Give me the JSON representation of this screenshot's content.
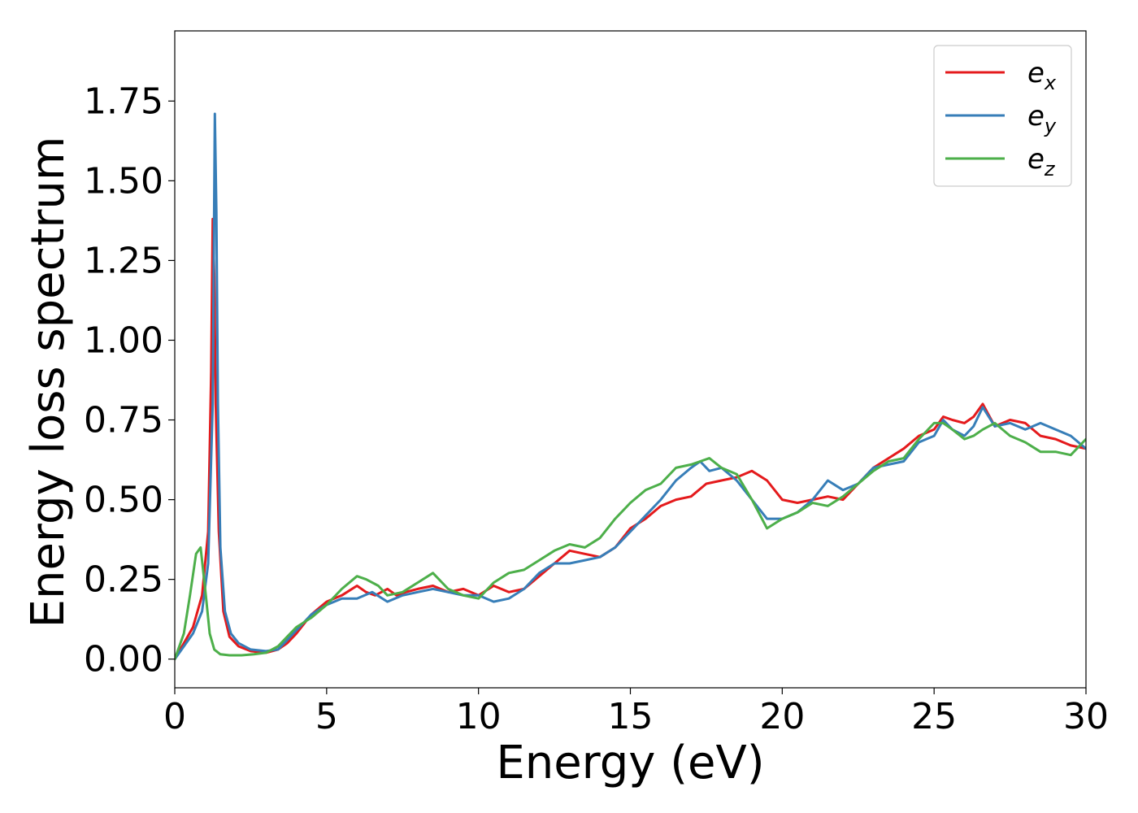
{
  "chart_data": {
    "type": "line",
    "title": "",
    "xlabel": "Energy (eV)",
    "ylabel": "Energy loss spectrum",
    "xlim": [
      0,
      30
    ],
    "ylim": [
      -0.09,
      1.97
    ],
    "xticks": [
      0,
      5,
      10,
      15,
      20,
      25,
      30
    ],
    "yticks": [
      0.0,
      0.25,
      0.5,
      0.75,
      1.0,
      1.25,
      1.5,
      1.75
    ],
    "ytick_labels": [
      "0.00",
      "0.25",
      "0.50",
      "0.75",
      "1.00",
      "1.25",
      "1.50",
      "1.75"
    ],
    "grid": false,
    "legend": {
      "placement": "top-right"
    },
    "series": [
      {
        "name": "e",
        "subscript": "x",
        "color": "#e41a1c",
        "x": [
          0,
          0.3,
          0.6,
          0.9,
          1.1,
          1.2,
          1.25,
          1.3,
          1.35,
          1.45,
          1.6,
          1.8,
          2.1,
          2.5,
          3.0,
          3.4,
          3.7,
          4.0,
          4.5,
          5.0,
          5.5,
          6.0,
          6.3,
          6.6,
          7.0,
          7.3,
          7.6,
          8.0,
          8.5,
          9.0,
          9.5,
          10.0,
          10.5,
          11.0,
          11.5,
          12.0,
          12.5,
          13.0,
          13.5,
          14.0,
          14.5,
          15.0,
          15.5,
          16.0,
          16.5,
          17.0,
          17.5,
          18.0,
          18.5,
          19.0,
          19.5,
          20.0,
          20.5,
          21.0,
          21.5,
          22.0,
          22.5,
          23.0,
          23.5,
          24.0,
          24.5,
          25.0,
          25.3,
          25.6,
          26.0,
          26.3,
          26.6,
          27.0,
          27.5,
          28.0,
          28.5,
          29.0,
          29.5,
          30.0
        ],
        "y": [
          0,
          0.05,
          0.1,
          0.2,
          0.4,
          0.9,
          1.38,
          1.2,
          0.8,
          0.4,
          0.15,
          0.07,
          0.04,
          0.025,
          0.02,
          0.03,
          0.05,
          0.08,
          0.14,
          0.18,
          0.2,
          0.23,
          0.21,
          0.2,
          0.22,
          0.2,
          0.21,
          0.22,
          0.23,
          0.21,
          0.22,
          0.2,
          0.23,
          0.21,
          0.22,
          0.26,
          0.3,
          0.34,
          0.33,
          0.32,
          0.35,
          0.41,
          0.44,
          0.48,
          0.5,
          0.51,
          0.55,
          0.56,
          0.57,
          0.59,
          0.56,
          0.5,
          0.49,
          0.5,
          0.51,
          0.5,
          0.55,
          0.6,
          0.63,
          0.66,
          0.7,
          0.72,
          0.76,
          0.75,
          0.74,
          0.76,
          0.8,
          0.73,
          0.75,
          0.74,
          0.7,
          0.69,
          0.67,
          0.66
        ]
      },
      {
        "name": "e",
        "subscript": "y",
        "color": "#377eb8",
        "x": [
          0,
          0.3,
          0.6,
          0.9,
          1.1,
          1.25,
          1.32,
          1.37,
          1.42,
          1.5,
          1.65,
          1.85,
          2.1,
          2.5,
          3.0,
          3.4,
          3.7,
          4.0,
          4.5,
          5.0,
          5.5,
          6.0,
          6.5,
          7.0,
          7.5,
          8.0,
          8.5,
          9.0,
          9.5,
          10.0,
          10.5,
          11.0,
          11.5,
          12.0,
          12.5,
          13.0,
          13.5,
          14.0,
          14.5,
          15.0,
          15.5,
          16.0,
          16.5,
          17.0,
          17.3,
          17.6,
          18.0,
          18.5,
          19.0,
          19.5,
          20.0,
          20.5,
          21.0,
          21.5,
          22.0,
          22.5,
          23.0,
          23.5,
          24.0,
          24.5,
          25.0,
          25.3,
          25.6,
          26.0,
          26.3,
          26.6,
          27.0,
          27.5,
          28.0,
          28.5,
          29.0,
          29.5,
          30.0
        ],
        "y": [
          0,
          0.04,
          0.08,
          0.15,
          0.3,
          0.8,
          1.71,
          1.4,
          0.8,
          0.35,
          0.15,
          0.08,
          0.05,
          0.03,
          0.025,
          0.03,
          0.06,
          0.09,
          0.14,
          0.17,
          0.19,
          0.19,
          0.21,
          0.18,
          0.2,
          0.21,
          0.22,
          0.21,
          0.2,
          0.2,
          0.18,
          0.19,
          0.22,
          0.27,
          0.3,
          0.3,
          0.31,
          0.32,
          0.35,
          0.4,
          0.45,
          0.5,
          0.56,
          0.6,
          0.62,
          0.59,
          0.6,
          0.56,
          0.5,
          0.44,
          0.44,
          0.46,
          0.5,
          0.56,
          0.53,
          0.55,
          0.6,
          0.61,
          0.62,
          0.68,
          0.7,
          0.75,
          0.72,
          0.7,
          0.73,
          0.79,
          0.73,
          0.74,
          0.72,
          0.74,
          0.72,
          0.7,
          0.66
        ]
      },
      {
        "name": "e",
        "subscript": "z",
        "color": "#4daf4a",
        "x": [
          0,
          0.3,
          0.5,
          0.7,
          0.85,
          1.0,
          1.15,
          1.3,
          1.5,
          1.8,
          2.2,
          2.6,
          3.0,
          3.4,
          3.7,
          4.0,
          4.5,
          5.0,
          5.5,
          6.0,
          6.3,
          6.7,
          7.0,
          7.5,
          8.0,
          8.5,
          9.0,
          9.5,
          10.0,
          10.5,
          11.0,
          11.5,
          12.0,
          12.5,
          13.0,
          13.5,
          14.0,
          14.5,
          15.0,
          15.5,
          16.0,
          16.5,
          17.0,
          17.3,
          17.6,
          18.0,
          18.5,
          19.0,
          19.5,
          20.0,
          20.5,
          21.0,
          21.5,
          22.0,
          22.5,
          23.0,
          23.5,
          24.0,
          24.5,
          25.0,
          25.3,
          25.6,
          26.0,
          26.3,
          26.6,
          27.0,
          27.5,
          28.0,
          28.5,
          29.0,
          29.5,
          30.0
        ],
        "y": [
          0,
          0.08,
          0.2,
          0.33,
          0.35,
          0.22,
          0.08,
          0.03,
          0.015,
          0.012,
          0.012,
          0.015,
          0.02,
          0.04,
          0.07,
          0.1,
          0.13,
          0.17,
          0.22,
          0.26,
          0.25,
          0.23,
          0.2,
          0.21,
          0.24,
          0.27,
          0.22,
          0.2,
          0.19,
          0.24,
          0.27,
          0.28,
          0.31,
          0.34,
          0.36,
          0.35,
          0.38,
          0.44,
          0.49,
          0.53,
          0.55,
          0.6,
          0.61,
          0.62,
          0.63,
          0.6,
          0.58,
          0.5,
          0.41,
          0.44,
          0.46,
          0.49,
          0.48,
          0.51,
          0.55,
          0.59,
          0.62,
          0.63,
          0.69,
          0.74,
          0.74,
          0.72,
          0.69,
          0.7,
          0.72,
          0.74,
          0.7,
          0.68,
          0.65,
          0.65,
          0.64,
          0.69
        ]
      }
    ]
  }
}
